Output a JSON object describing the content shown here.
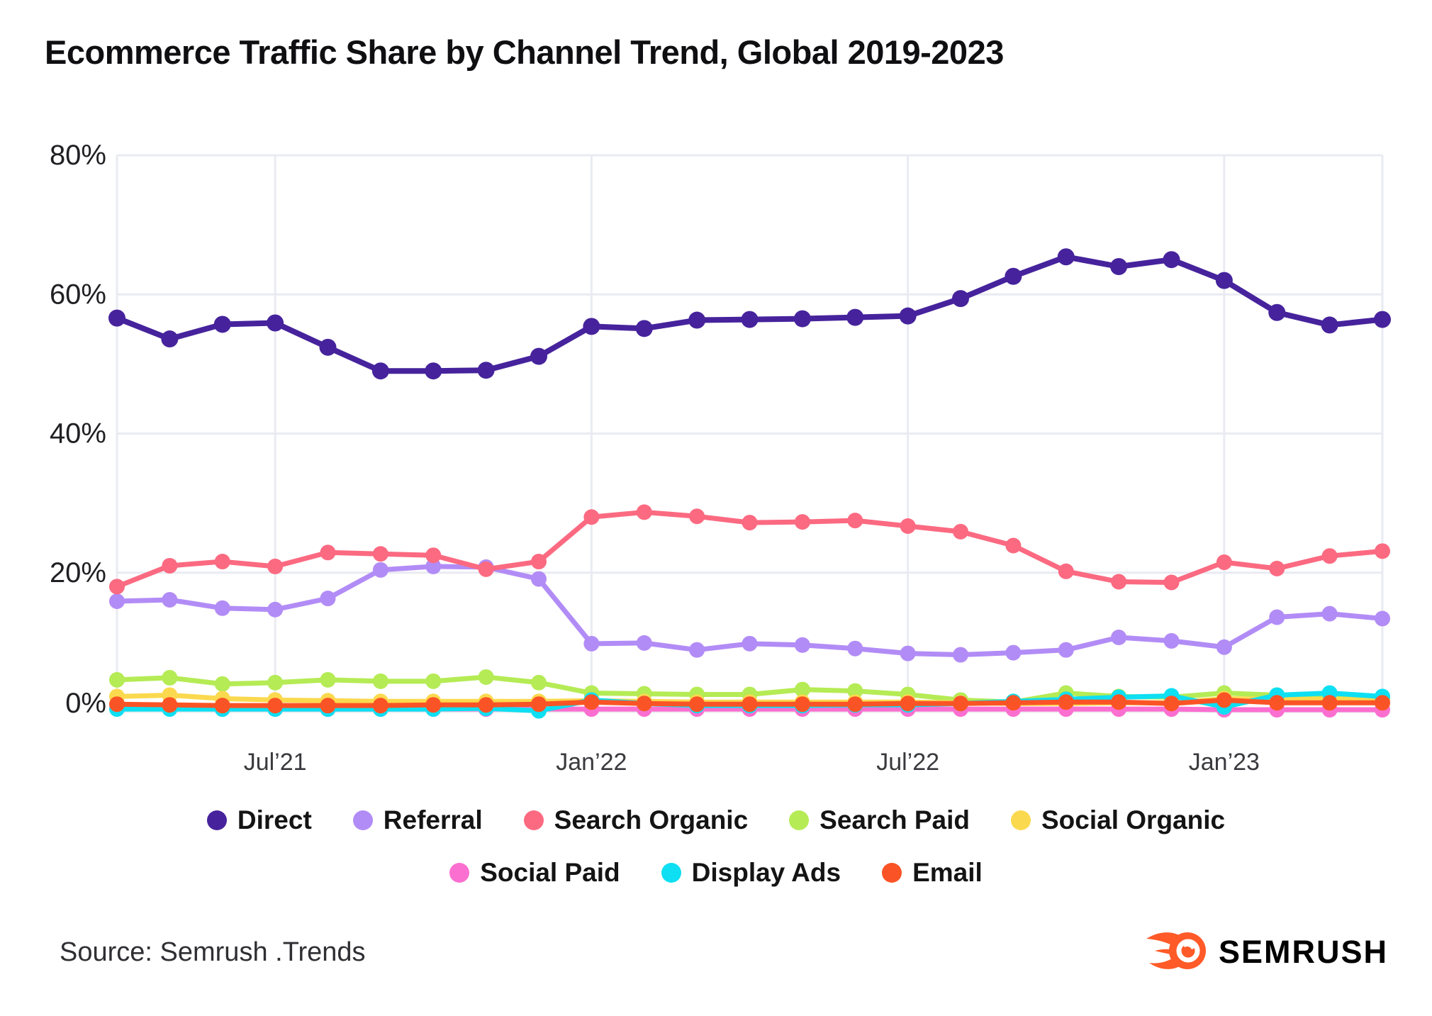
{
  "title": "Ecommerce Traffic Share by Channel Trend, Global 2019-2023",
  "source": "Source: Semrush .Trends",
  "logo": {
    "brand": "SEMRUSH",
    "orange": "#ff5a28"
  },
  "colors": {
    "background": "#ffffff",
    "title_text": "#0f0f12",
    "grid": "#eaebf2",
    "y_tick_text": "#202024",
    "x_tick_text": "#3a3a3e",
    "legend_text": "#141414"
  },
  "chart_data": {
    "type": "line",
    "x": [
      "Apr'21",
      "May'21",
      "Jun'21",
      "Jul'21",
      "Aug'21",
      "Sep'21",
      "Oct'21",
      "Nov'21",
      "Dec'21",
      "Jan'22",
      "Feb'22",
      "Mar'22",
      "Apr'22",
      "May'22",
      "Jun'22",
      "Jul'22",
      "Aug'22",
      "Sep'22",
      "Oct'22",
      "Nov'22",
      "Dec'22",
      "Jan'23",
      "Feb'23",
      "Mar'23",
      "Apr'23"
    ],
    "x_tick_indices": [
      3,
      9,
      15,
      21
    ],
    "x_tick_labels": [
      "Jul’21",
      "Jan’22",
      "Jul’22",
      "Jan’23"
    ],
    "y_ticks": [
      0,
      20,
      40,
      60,
      80
    ],
    "y_tick_labels": [
      "0%",
      "20%",
      "40%",
      "60%",
      "80%"
    ],
    "ylim": [
      0,
      80
    ],
    "grid": true,
    "legend_position": "bottom",
    "legend_rows": [
      [
        "Direct",
        "Referral",
        "Search Organic",
        "Search Paid",
        "Social Organic"
      ],
      [
        "Social Paid",
        "Display Ads",
        "Email"
      ]
    ],
    "series": [
      {
        "name": "Direct",
        "color": "#46239c",
        "values": [
          56.6,
          53.6,
          55.7,
          55.9,
          52.4,
          49.0,
          49.0,
          49.1,
          51.1,
          55.4,
          55.1,
          56.3,
          56.4,
          56.5,
          56.7,
          56.9,
          59.4,
          62.6,
          65.4,
          64.0,
          65.0,
          62.0,
          57.4,
          55.6,
          56.4
        ]
      },
      {
        "name": "Referral",
        "color": "#b28cf6",
        "values": [
          15.9,
          16.1,
          14.9,
          14.7,
          16.3,
          20.4,
          20.9,
          20.8,
          19.1,
          9.8,
          9.9,
          8.9,
          9.8,
          9.6,
          9.1,
          8.4,
          8.2,
          8.5,
          8.9,
          10.7,
          10.2,
          9.3,
          13.6,
          14.1,
          13.4
        ]
      },
      {
        "name": "Search Organic",
        "color": "#fb6a81",
        "values": [
          18.0,
          21.0,
          21.6,
          20.9,
          22.9,
          22.7,
          22.5,
          20.5,
          21.6,
          28.0,
          28.7,
          28.1,
          27.2,
          27.3,
          27.5,
          26.7,
          25.9,
          23.9,
          20.2,
          18.7,
          18.6,
          21.5,
          20.6,
          22.4,
          23.1
        ]
      },
      {
        "name": "Search Paid",
        "color": "#b5eb55",
        "values": [
          4.6,
          4.9,
          4.0,
          4.2,
          4.6,
          4.4,
          4.4,
          5.0,
          4.2,
          2.7,
          2.6,
          2.5,
          2.5,
          3.2,
          3.0,
          2.5,
          1.7,
          1.4,
          2.7,
          2.2,
          2.1,
          2.7,
          2.4,
          2.0,
          2.1
        ]
      },
      {
        "name": "Social Organic",
        "color": "#fbd94e",
        "values": [
          2.2,
          2.4,
          1.9,
          1.7,
          1.6,
          1.5,
          1.5,
          1.5,
          1.5,
          1.6,
          1.5,
          1.4,
          1.4,
          1.4,
          1.4,
          1.4,
          1.3,
          1.2,
          1.2,
          1.3,
          1.3,
          1.9,
          1.8,
          1.8,
          1.8
        ]
      },
      {
        "name": "Social Paid",
        "color": "#fb6fd0",
        "values": [
          0.5,
          0.5,
          0.4,
          0.4,
          0.4,
          0.4,
          0.4,
          0.4,
          0.4,
          0.4,
          0.4,
          0.4,
          0.4,
          0.4,
          0.4,
          0.4,
          0.4,
          0.4,
          0.4,
          0.4,
          0.4,
          0.3,
          0.3,
          0.3,
          0.3
        ]
      },
      {
        "name": "Display Ads",
        "color": "#0edff2",
        "values": [
          0.4,
          0.4,
          0.4,
          0.4,
          0.4,
          0.4,
          0.4,
          0.5,
          0.15,
          1.7,
          1.2,
          0.9,
          0.9,
          0.9,
          1.0,
          1.0,
          1.2,
          1.5,
          1.8,
          2.1,
          2.3,
          0.7,
          2.4,
          2.7,
          2.2
        ]
      },
      {
        "name": "Email",
        "color": "#fa5426",
        "values": [
          1.1,
          1.0,
          0.9,
          0.9,
          0.9,
          0.9,
          1.0,
          1.0,
          1.1,
          1.4,
          1.2,
          1.1,
          1.1,
          1.1,
          1.1,
          1.2,
          1.2,
          1.3,
          1.4,
          1.4,
          1.2,
          1.7,
          1.3,
          1.3,
          1.3
        ]
      }
    ]
  }
}
